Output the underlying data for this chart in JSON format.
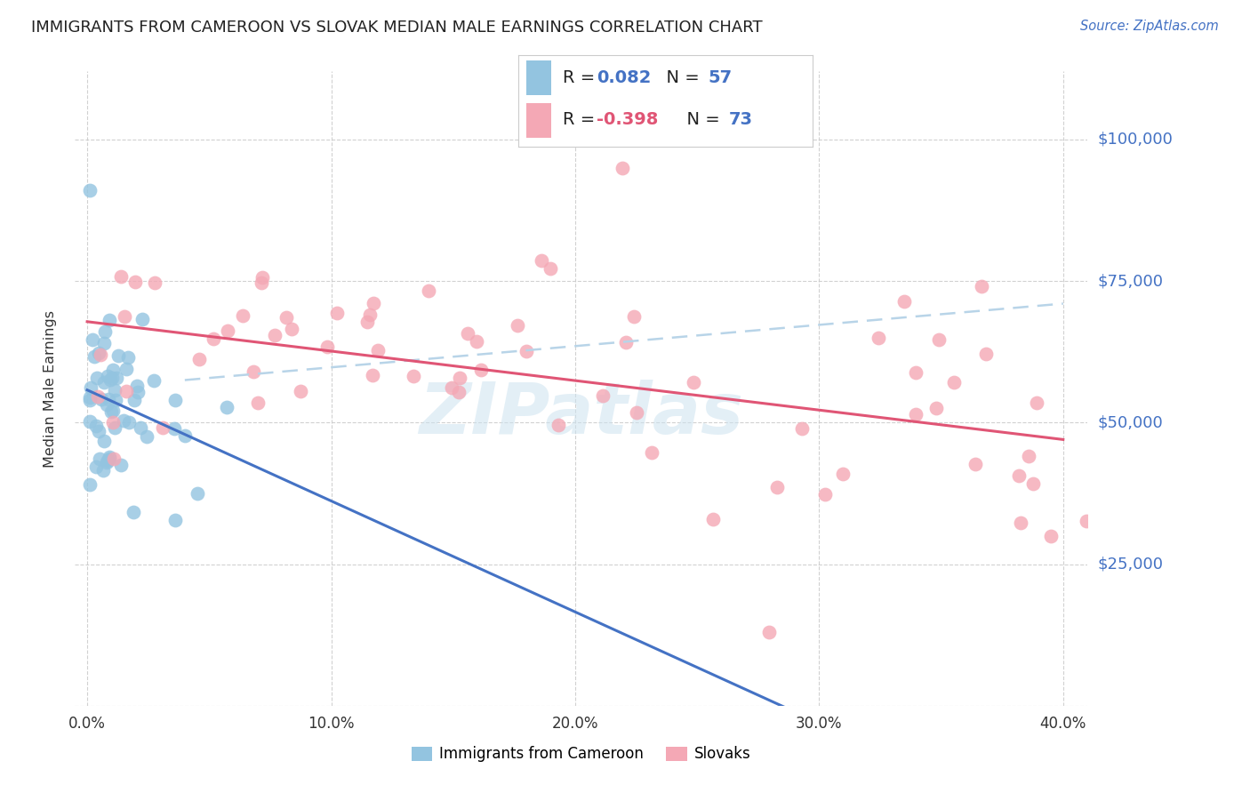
{
  "title": "IMMIGRANTS FROM CAMEROON VS SLOVAK MEDIAN MALE EARNINGS CORRELATION CHART",
  "source": "Source: ZipAtlas.com",
  "ylabel": "Median Male Earnings",
  "xlim": [
    -0.005,
    0.41
  ],
  "ylim": [
    0,
    112000
  ],
  "ytick_values": [
    0,
    25000,
    50000,
    75000,
    100000
  ],
  "ytick_labels": [
    "",
    "$25,000",
    "$50,000",
    "$75,000",
    "$100,000"
  ],
  "xtick_values": [
    0.0,
    0.1,
    0.2,
    0.3,
    0.4
  ],
  "xtick_labels": [
    "0.0%",
    "10.0%",
    "20.0%",
    "30.0%",
    "40.0%"
  ],
  "n1": 57,
  "n2": 73,
  "r1": 0.082,
  "r2": -0.398,
  "color_blue": "#93c4e0",
  "color_pink": "#f4a8b5",
  "line_blue_solid": "#4472c4",
  "line_pink_solid": "#e05575",
  "line_blue_dash": "#b8d4e8",
  "watermark": "ZIPatlas",
  "background_color": "#ffffff",
  "grid_color": "#cccccc",
  "ytick_label_color": "#4472c4",
  "title_color": "#222222",
  "source_color": "#4472c4",
  "legend_r_color": "#4472c4",
  "legend_r2_color": "#e05575",
  "legend_n_color": "#4472c4",
  "ylabel_color": "#333333",
  "xtick_color": "#333333"
}
